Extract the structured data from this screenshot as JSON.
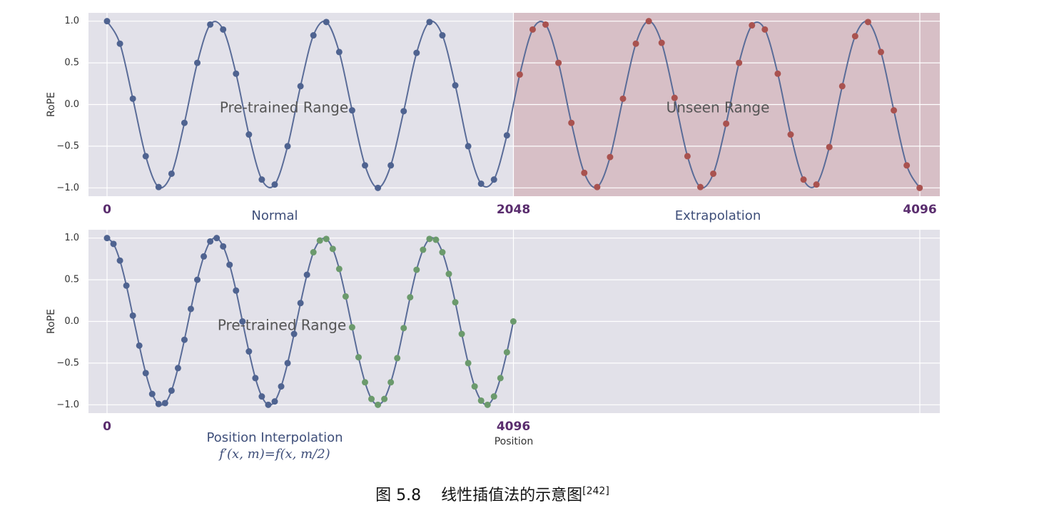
{
  "caption": {
    "number": "图 5.8",
    "title": "线性插值法的示意图",
    "citation": "[242]"
  },
  "chart_data": [
    {
      "type": "line",
      "y_label": "RoPE",
      "xlim": [
        -93.5,
        4196.7
      ],
      "ylim": [
        -1.1,
        1.1
      ],
      "xticks": [
        0,
        2048,
        4096
      ],
      "yticks": [
        {
          "value": -1,
          "label": "−1.0"
        },
        {
          "value": -0.5,
          "label": "−0.5"
        },
        {
          "value": 0,
          "label": "0.0"
        },
        {
          "value": 0.5,
          "label": "0.5"
        },
        {
          "value": 1,
          "label": "1.0"
        }
      ],
      "grid": true,
      "background": "#e2e1e9",
      "line_color": "#5a6c98",
      "shade": {
        "from": 2048,
        "color": "#d5b9c0"
      },
      "annotations": [
        "Pre-trained Range",
        "Unseen Range"
      ],
      "region_labels": [
        "Normal",
        "Extrapolation"
      ],
      "series": [
        {
          "color": "#4f6390",
          "x": [
            0,
            65,
            130,
            195,
            260,
            325,
            390,
            455,
            520,
            585,
            650,
            715,
            780,
            845,
            910,
            975,
            1040,
            1105,
            1170,
            1235,
            1300,
            1365,
            1430,
            1495,
            1560,
            1625,
            1690,
            1755,
            1820,
            1885,
            1950,
            2015
          ],
          "values": [
            1.0,
            0.73,
            0.07,
            -0.62,
            -0.99,
            -0.83,
            -0.22,
            0.5,
            0.96,
            0.9,
            0.37,
            -0.36,
            -0.9,
            -0.96,
            -0.5,
            0.22,
            0.83,
            0.99,
            0.63,
            -0.07,
            -0.73,
            -1.0,
            -0.73,
            -0.08,
            0.62,
            0.99,
            0.83,
            0.23,
            -0.5,
            -0.95,
            -0.9,
            -0.37
          ]
        },
        {
          "color": "#a9524f",
          "x": [
            2080,
            2145,
            2210,
            2275,
            2340,
            2405,
            2470,
            2535,
            2600,
            2665,
            2730,
            2795,
            2860,
            2925,
            2990,
            3055,
            3120,
            3185,
            3250,
            3315,
            3380,
            3445,
            3510,
            3575,
            3640,
            3705,
            3770,
            3835,
            3900,
            3965,
            4030,
            4095
          ],
          "values": [
            0.36,
            0.9,
            0.96,
            0.5,
            -0.22,
            -0.82,
            -0.99,
            -0.63,
            0.07,
            0.73,
            1.0,
            0.74,
            0.08,
            -0.62,
            -0.99,
            -0.83,
            -0.23,
            0.5,
            0.95,
            0.9,
            0.37,
            -0.36,
            -0.9,
            -0.96,
            -0.51,
            0.22,
            0.82,
            0.99,
            0.63,
            -0.07,
            -0.73,
            -1.0
          ]
        }
      ]
    },
    {
      "type": "line",
      "y_label": "RoPE",
      "x_label": "Position",
      "xlim": [
        -187,
        8393.4
      ],
      "ylim": [
        -1.1,
        1.1
      ],
      "xticks": [
        0,
        4096,
        {
          "value": 8192,
          "label": null
        }
      ],
      "yticks": [
        {
          "value": -1,
          "label": "−1.0"
        },
        {
          "value": -0.5,
          "label": "−0.5"
        },
        {
          "value": 0,
          "label": "0.0"
        },
        {
          "value": 0.5,
          "label": "0.5"
        },
        {
          "value": 1,
          "label": "1.0"
        }
      ],
      "grid": true,
      "background": "#e2e1e9",
      "line_color": "#5a6c98",
      "annotations": [
        "Pre-trained Range"
      ],
      "region_labels": [
        "Position Interpolation"
      ],
      "formula": "f′(x, m)=f(x, m/2)",
      "series": [
        {
          "color": "#4f6390",
          "x": [
            0,
            65,
            130,
            195,
            260,
            325,
            390,
            455,
            520,
            585,
            650,
            715,
            780,
            845,
            910,
            975,
            1040,
            1105,
            1170,
            1235,
            1300,
            1365,
            1430,
            1495,
            1560,
            1625,
            1690,
            1755,
            1820,
            1885,
            1950,
            2015
          ],
          "values": [
            1.0,
            0.93,
            0.73,
            0.43,
            0.07,
            -0.29,
            -0.62,
            -0.87,
            -0.99,
            -0.98,
            -0.83,
            -0.56,
            -0.22,
            0.15,
            0.5,
            0.78,
            0.96,
            1.0,
            0.9,
            0.68,
            0.37,
            0.0,
            -0.36,
            -0.68,
            -0.9,
            -1.0,
            -0.96,
            -0.78,
            -0.5,
            -0.15,
            0.22,
            0.56
          ]
        },
        {
          "color": "#6b9a6c",
          "x": [
            2080,
            2145,
            2210,
            2275,
            2340,
            2405,
            2470,
            2535,
            2600,
            2665,
            2730,
            2795,
            2860,
            2925,
            2990,
            3055,
            3120,
            3185,
            3250,
            3315,
            3380,
            3445,
            3510,
            3575,
            3640,
            3705,
            3770,
            3835,
            3900,
            3965,
            4030,
            4095
          ],
          "values": [
            0.83,
            0.97,
            0.99,
            0.87,
            0.63,
            0.3,
            -0.07,
            -0.43,
            -0.73,
            -0.93,
            -1.0,
            -0.93,
            -0.73,
            -0.44,
            -0.08,
            0.29,
            0.62,
            0.86,
            0.99,
            0.98,
            0.83,
            0.57,
            0.23,
            -0.15,
            -0.5,
            -0.78,
            -0.95,
            -1.0,
            -0.9,
            -0.68,
            -0.37,
            0.0
          ]
        }
      ]
    }
  ]
}
